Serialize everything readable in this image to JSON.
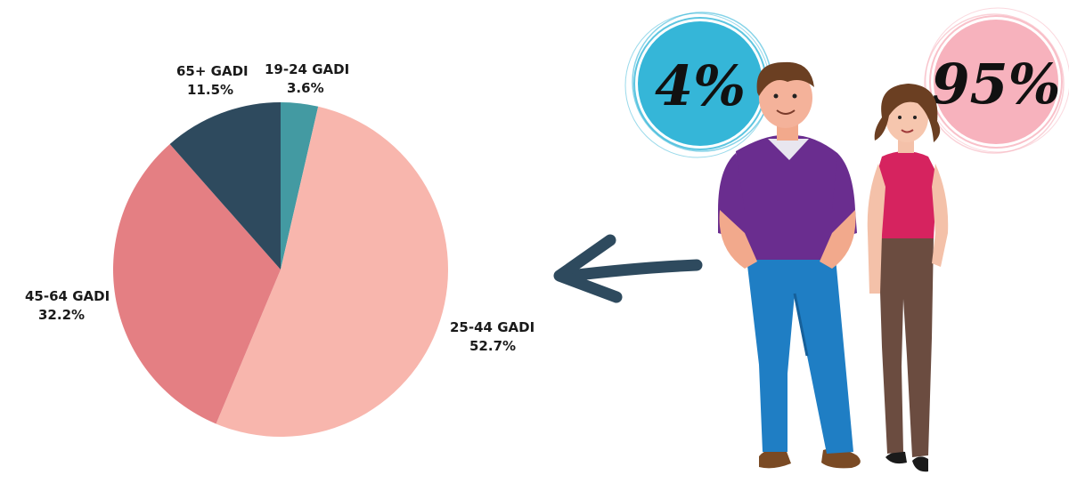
{
  "chart_data": {
    "type": "pie",
    "categories": [
      "19-24 GADI",
      "25-44 GADI",
      "45-64 GADI",
      "65+ GADI"
    ],
    "values": [
      3.6,
      52.7,
      32.2,
      11.5
    ],
    "value_labels": [
      "3.6%",
      "52.7%",
      "32.2%",
      "11.5%"
    ],
    "colors": [
      "#439aa2",
      "#f8b6ad",
      "#e47f83",
      "#2e4a5e"
    ],
    "start": "top",
    "direction": "clockwise",
    "title": "",
    "legend": "none"
  },
  "infographic": {
    "male_share": "4%",
    "female_share": "95%",
    "male_circle_color": "#35b6d8",
    "female_circle_color": "#f7b2bd",
    "arrow_color": "#2e4a5e",
    "arrow_direction": "left"
  }
}
